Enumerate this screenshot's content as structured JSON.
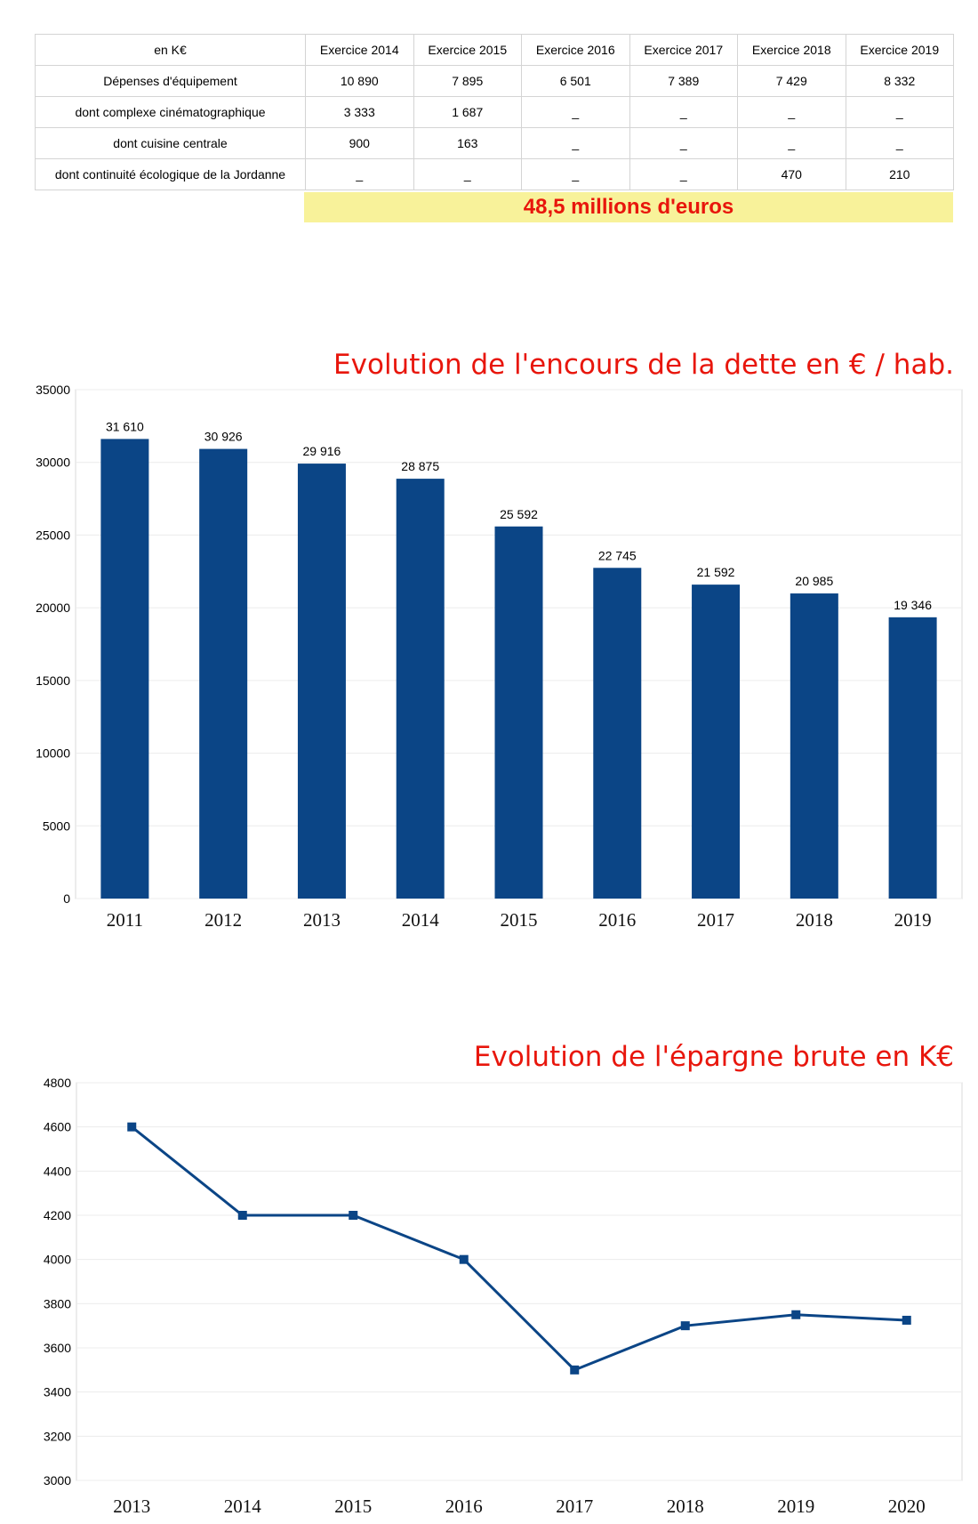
{
  "table": {
    "headers": [
      "en K€",
      "Exercice 2014",
      "Exercice 2015",
      "Exercice 2016",
      "Exercice 2017",
      "Exercice 2018",
      "Exercice 2019"
    ],
    "rows": [
      [
        "Dépenses d'équipement",
        "10 890",
        "7 895",
        "6 501",
        "7 389",
        "7 429",
        "8 332"
      ],
      [
        "dont complexe cinématographique",
        "3 333",
        "1 687",
        "_",
        "_",
        "_",
        "_"
      ],
      [
        "dont cuisine centrale",
        "900",
        "163",
        "_",
        "_",
        "_",
        "_"
      ],
      [
        "dont continuité écologique de la Jordanne",
        "_",
        "_",
        "_",
        "_",
        "470",
        "210"
      ]
    ],
    "total_banner": "48,5 millions d'euros"
  },
  "chart_data": [
    {
      "type": "bar",
      "title": "Evolution de l'encours de la dette en € / hab.",
      "categories": [
        "2011",
        "2012",
        "2013",
        "2014",
        "2015",
        "2016",
        "2017",
        "2018",
        "2019"
      ],
      "values": [
        31610,
        30926,
        29916,
        28875,
        25592,
        22745,
        21592,
        20985,
        19346
      ],
      "data_labels": [
        "31 610",
        "30 926",
        "29 916",
        "28 875",
        "25 592",
        "22 745",
        "21 592",
        "20 985",
        "19 346"
      ],
      "yticks": [
        "0",
        "5000",
        "10000",
        "15000",
        "20000",
        "25000",
        "30000",
        "35000"
      ],
      "ylim": [
        0,
        35000
      ],
      "grid": true,
      "color": "#0b4586"
    },
    {
      "type": "line",
      "title": "Evolution de l'épargne brute en K€",
      "categories": [
        "2013",
        "2014",
        "2015",
        "2016",
        "2017",
        "2018",
        "2019",
        "2020"
      ],
      "values": [
        4600,
        4200,
        4200,
        4000,
        3500,
        3700,
        3750,
        3725
      ],
      "yticks": [
        "3000",
        "3200",
        "3400",
        "3600",
        "3800",
        "4000",
        "4200",
        "4400",
        "4600",
        "4800"
      ],
      "ylim": [
        3000,
        4800
      ],
      "grid": true,
      "color": "#0b4586"
    }
  ]
}
